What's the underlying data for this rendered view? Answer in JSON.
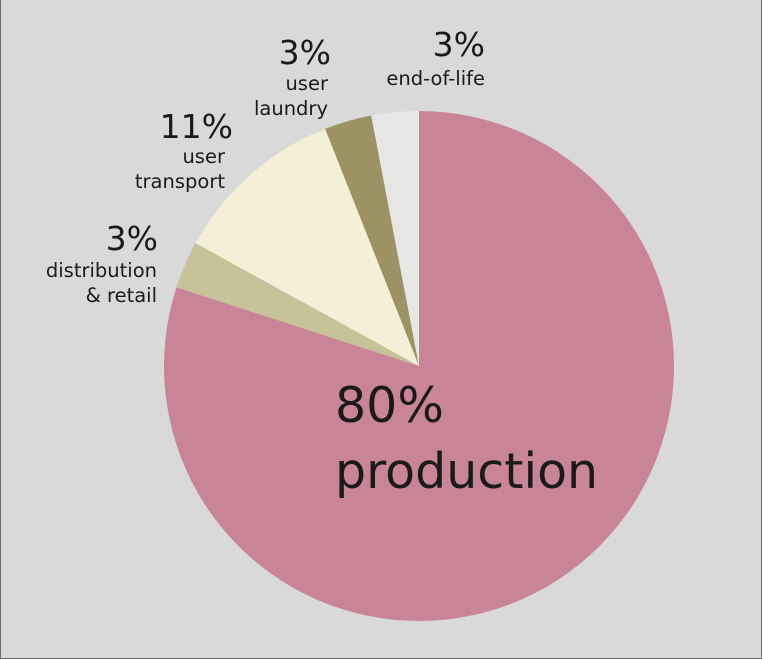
{
  "chart_data": {
    "type": "pie",
    "slices": [
      {
        "label_lines": [
          "production"
        ],
        "value": 80,
        "value_label": "80%",
        "color": "#c98597"
      },
      {
        "label_lines": [
          "distribution",
          "& retail"
        ],
        "value": 3,
        "value_label": "3%",
        "color": "#c6c29a"
      },
      {
        "label_lines": [
          "user",
          "transport"
        ],
        "value": 11,
        "value_label": "11%",
        "color": "#f5efd8"
      },
      {
        "label_lines": [
          "user",
          "laundry"
        ],
        "value": 3,
        "value_label": "3%",
        "color": "#9c9264"
      },
      {
        "label_lines": [
          "end-of-life"
        ],
        "value": 3,
        "value_label": "3%",
        "color": "#e6e6e4"
      }
    ],
    "start": "12 o'clock",
    "direction": "clockwise"
  },
  "colors": {
    "background": "#d9d9d9",
    "text": "#1a1a1a"
  }
}
